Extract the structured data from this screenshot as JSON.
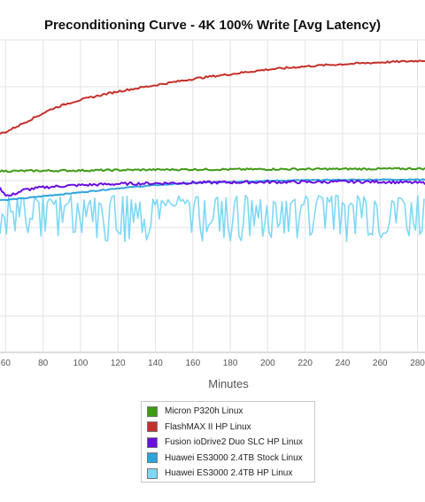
{
  "chart_data": {
    "type": "line",
    "title": "Preconditioning Curve - 4K 100% Write [Avg Latency)",
    "xlabel": "Minutes",
    "ylabel": "",
    "xlim": [
      57,
      284
    ],
    "ylim": [
      0,
      100
    ],
    "x_ticks": [
      60,
      80,
      100,
      120,
      140,
      160,
      180,
      200,
      220,
      240,
      260,
      280
    ],
    "grid": true,
    "legend_position": "bottom",
    "series": [
      {
        "name": "Micron P320h Linux",
        "color": "#3f9a16",
        "x": [
          57,
          100,
          150,
          200,
          250,
          284
        ],
        "y": [
          58.0,
          58.2,
          58.5,
          58.6,
          58.7,
          58.8
        ],
        "noise": 0.3
      },
      {
        "name": "FlashMAX II HP Linux",
        "color": "#c4302b",
        "x": [
          57,
          60,
          65,
          70,
          75,
          80,
          85,
          90,
          95,
          100,
          110,
          120,
          130,
          140,
          150,
          160,
          170,
          180,
          190,
          200,
          210,
          220,
          230,
          240,
          250,
          260,
          270,
          284
        ],
        "y": [
          70.0,
          70.5,
          72.0,
          73.5,
          75.0,
          76.5,
          78.0,
          79.0,
          80.0,
          80.8,
          82.2,
          83.5,
          84.5,
          85.5,
          86.5,
          87.5,
          88.3,
          89.0,
          89.8,
          90.5,
          91.0,
          91.5,
          91.9,
          92.2,
          92.5,
          92.8,
          93.0,
          93.4
        ],
        "noise": 0.3
      },
      {
        "name": "Fusion ioDrive2 Duo SLC HP Linux",
        "color": "#6a0ee0",
        "x": [
          57,
          60,
          62,
          65,
          70,
          80,
          90,
          100,
          120,
          140,
          160,
          180,
          200,
          220,
          240,
          260,
          284
        ],
        "y": [
          52.5,
          50.5,
          50.0,
          50.8,
          52.0,
          52.8,
          53.2,
          53.5,
          53.9,
          54.1,
          54.3,
          54.4,
          54.5,
          54.5,
          54.6,
          54.6,
          54.2
        ],
        "noise": 0.45
      },
      {
        "name": "Huawei ES3000 2.4TB Stock Linux",
        "color": "#2ea4dc",
        "x": [
          57,
          60,
          70,
          80,
          100,
          120,
          140,
          160,
          180,
          200,
          220,
          240,
          260,
          284
        ],
        "y": [
          48.8,
          48.8,
          49.3,
          50.0,
          51.2,
          52.5,
          53.5,
          54.2,
          54.6,
          54.9,
          55.1,
          55.2,
          55.3,
          55.3
        ],
        "noise": 0.15
      },
      {
        "name": "Huawei ES3000 2.4TB HP Linux",
        "color": "#7fd8f6",
        "x": [
          57,
          284
        ],
        "y": [
          50.0,
          50.0
        ],
        "high": 50.3,
        "low": 35.5,
        "noise": 1.6
      }
    ]
  },
  "legend": {
    "swatch_colors": [
      "#3f9a16",
      "#c4302b",
      "#6a0ee0",
      "#2ea4dc",
      "#7fd8f6"
    ]
  }
}
